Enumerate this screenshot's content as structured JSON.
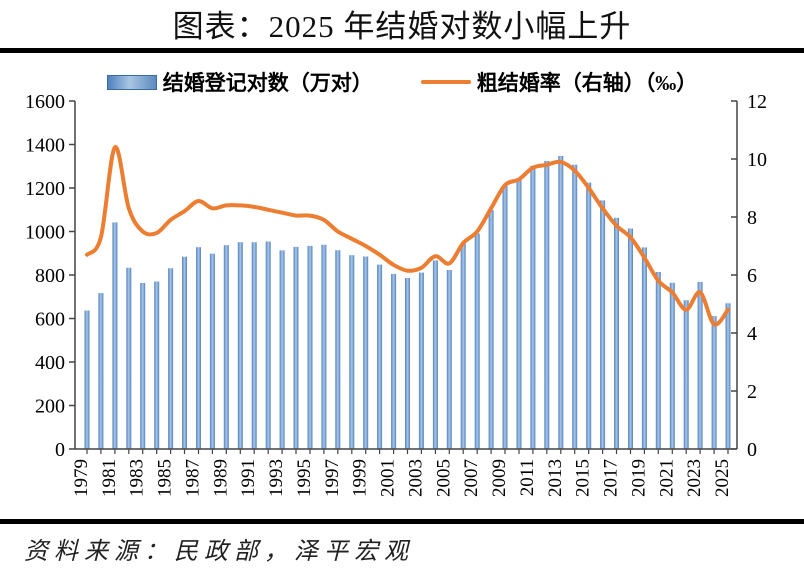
{
  "title": "图表：2025 年结婚对数小幅上升",
  "source_note": "资料来源：民政部，泽平宏观",
  "legend": {
    "bars_label": "结婚登记对数（万对）",
    "line_label": "粗结婚率（右轴）（‰）"
  },
  "colors": {
    "bar_edge": "#4f81bd",
    "bar_center": "#aac7e8",
    "bar_border": "#3a6a9e",
    "line": "#ED7D31",
    "axis": "#555555",
    "rule": "#000000"
  },
  "chart_data": {
    "type": "bar",
    "subtype": "dual-axis bar + smooth line",
    "categories": [
      1979,
      1980,
      1981,
      1982,
      1983,
      1984,
      1985,
      1986,
      1987,
      1988,
      1989,
      1990,
      1991,
      1992,
      1993,
      1994,
      1995,
      1996,
      1997,
      1998,
      1999,
      2000,
      2001,
      2002,
      2003,
      2004,
      2005,
      2006,
      2007,
      2008,
      2009,
      2010,
      2011,
      2012,
      2013,
      2014,
      2015,
      2016,
      2017,
      2018,
      2019,
      2020,
      2021,
      2022,
      2023,
      2024,
      2025
    ],
    "series": [
      {
        "name": "结婚登记对数（万对）",
        "type": "bar",
        "axis": "left",
        "values": [
          637,
          717,
          1042,
          833,
          763,
          770,
          831,
          884,
          928,
          898,
          937,
          951,
          951,
          954,
          913,
          929,
          934,
          939,
          914,
          891,
          885,
          848,
          805,
          786,
          811,
          867,
          823,
          945,
          991,
          1098,
          1212,
          1241,
          1302,
          1324,
          1347,
          1307,
          1225,
          1143,
          1063,
          1014,
          927,
          814,
          764,
          684,
          768,
          611,
          670
        ]
      },
      {
        "name": "粗结婚率（右轴）（‰）",
        "type": "line",
        "axis": "right",
        "values": [
          6.7,
          7.3,
          10.4,
          8.3,
          7.5,
          7.45,
          7.9,
          8.2,
          8.55,
          8.3,
          8.4,
          8.4,
          8.35,
          8.25,
          8.15,
          8.05,
          8.05,
          7.9,
          7.5,
          7.25,
          7.0,
          6.7,
          6.35,
          6.15,
          6.25,
          6.65,
          6.4,
          7.1,
          7.5,
          8.3,
          9.1,
          9.3,
          9.7,
          9.8,
          9.9,
          9.6,
          9.0,
          8.3,
          7.7,
          7.3,
          6.6,
          5.8,
          5.4,
          4.8,
          5.4,
          4.3,
          4.8
        ]
      }
    ],
    "left_axis": {
      "min": 0,
      "max": 1600,
      "step": 200,
      "tick_labels": [
        "0",
        "200",
        "400",
        "600",
        "800",
        "1000",
        "1200",
        "1400",
        "1600"
      ]
    },
    "right_axis": {
      "min": 0,
      "max": 12,
      "step": 2,
      "tick_labels": [
        "0",
        "2",
        "4",
        "6",
        "8",
        "10",
        "12"
      ]
    },
    "x_axis": {
      "label_every": 2,
      "tick_labels": [
        "1979",
        "1981",
        "1983",
        "1985",
        "1987",
        "1989",
        "1991",
        "1993",
        "1995",
        "1997",
        "1999",
        "2001",
        "2003",
        "2005",
        "2007",
        "2009",
        "2011",
        "2013",
        "2015",
        "2017",
        "2019",
        "2021",
        "2023",
        "2025"
      ]
    },
    "grid": false,
    "legend_position": "top"
  }
}
